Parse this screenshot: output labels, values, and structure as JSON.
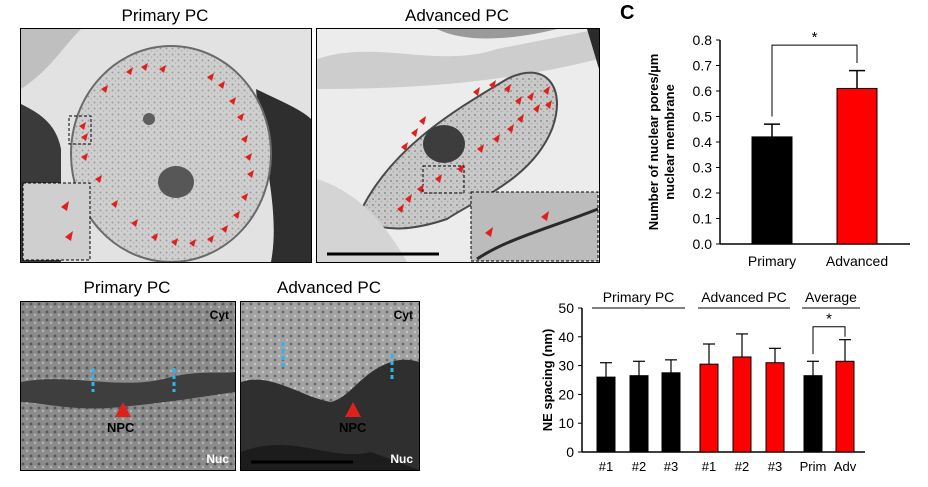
{
  "figure": {
    "panel_letter": "C",
    "top_left": {
      "title": "Primary PC"
    },
    "top_right": {
      "title": "Advanced PC"
    },
    "bottom_left": {
      "title": "Primary PC",
      "cyt_label": "Cyt",
      "nuc_label": "Nuc",
      "npc_label": "NPC"
    },
    "bottom_right": {
      "title": "Advanced PC",
      "cyt_label": "Cyt",
      "nuc_label": "Nuc",
      "npc_label": "NPC"
    }
  },
  "colors": {
    "primary": "#000000",
    "advanced": "#ff0000",
    "arrow": "#e0201b",
    "dash": "#2ab6ea"
  },
  "chart_data": [
    {
      "type": "bar",
      "categories": [
        "Primary",
        "Advanced"
      ],
      "values": [
        0.42,
        0.61
      ],
      "errors": [
        0.05,
        0.07
      ],
      "colors": [
        "#000000",
        "#ff0000"
      ],
      "ylabel_line1": "Number of nuclear pores/µm",
      "ylabel_line2": "nuclear membrane",
      "ylim": [
        0,
        0.8
      ],
      "yticks": [
        "0.0",
        "0.1",
        "0.2",
        "0.3",
        "0.4",
        "0.5",
        "0.6",
        "0.7",
        "0.8"
      ],
      "significance": "*"
    },
    {
      "type": "bar",
      "categories": [
        "#1",
        "#2",
        "#3",
        "#1",
        "#2",
        "#3",
        "Prim",
        "Adv"
      ],
      "values": [
        26,
        26.5,
        27.5,
        30.5,
        33,
        31,
        26.5,
        31.5
      ],
      "errors": [
        5,
        5,
        4.5,
        7,
        8,
        5,
        5,
        7.5
      ],
      "colors": [
        "#000000",
        "#000000",
        "#000000",
        "#ff0000",
        "#ff0000",
        "#ff0000",
        "#000000",
        "#ff0000"
      ],
      "groups": [
        "Primary PC",
        "Advanced PC",
        "Average"
      ],
      "ylabel": "NE  spacing (nm)",
      "ylim": [
        0,
        50
      ],
      "yticks": [
        "0",
        "10",
        "20",
        "30",
        "40",
        "50"
      ],
      "significance": "*"
    }
  ]
}
